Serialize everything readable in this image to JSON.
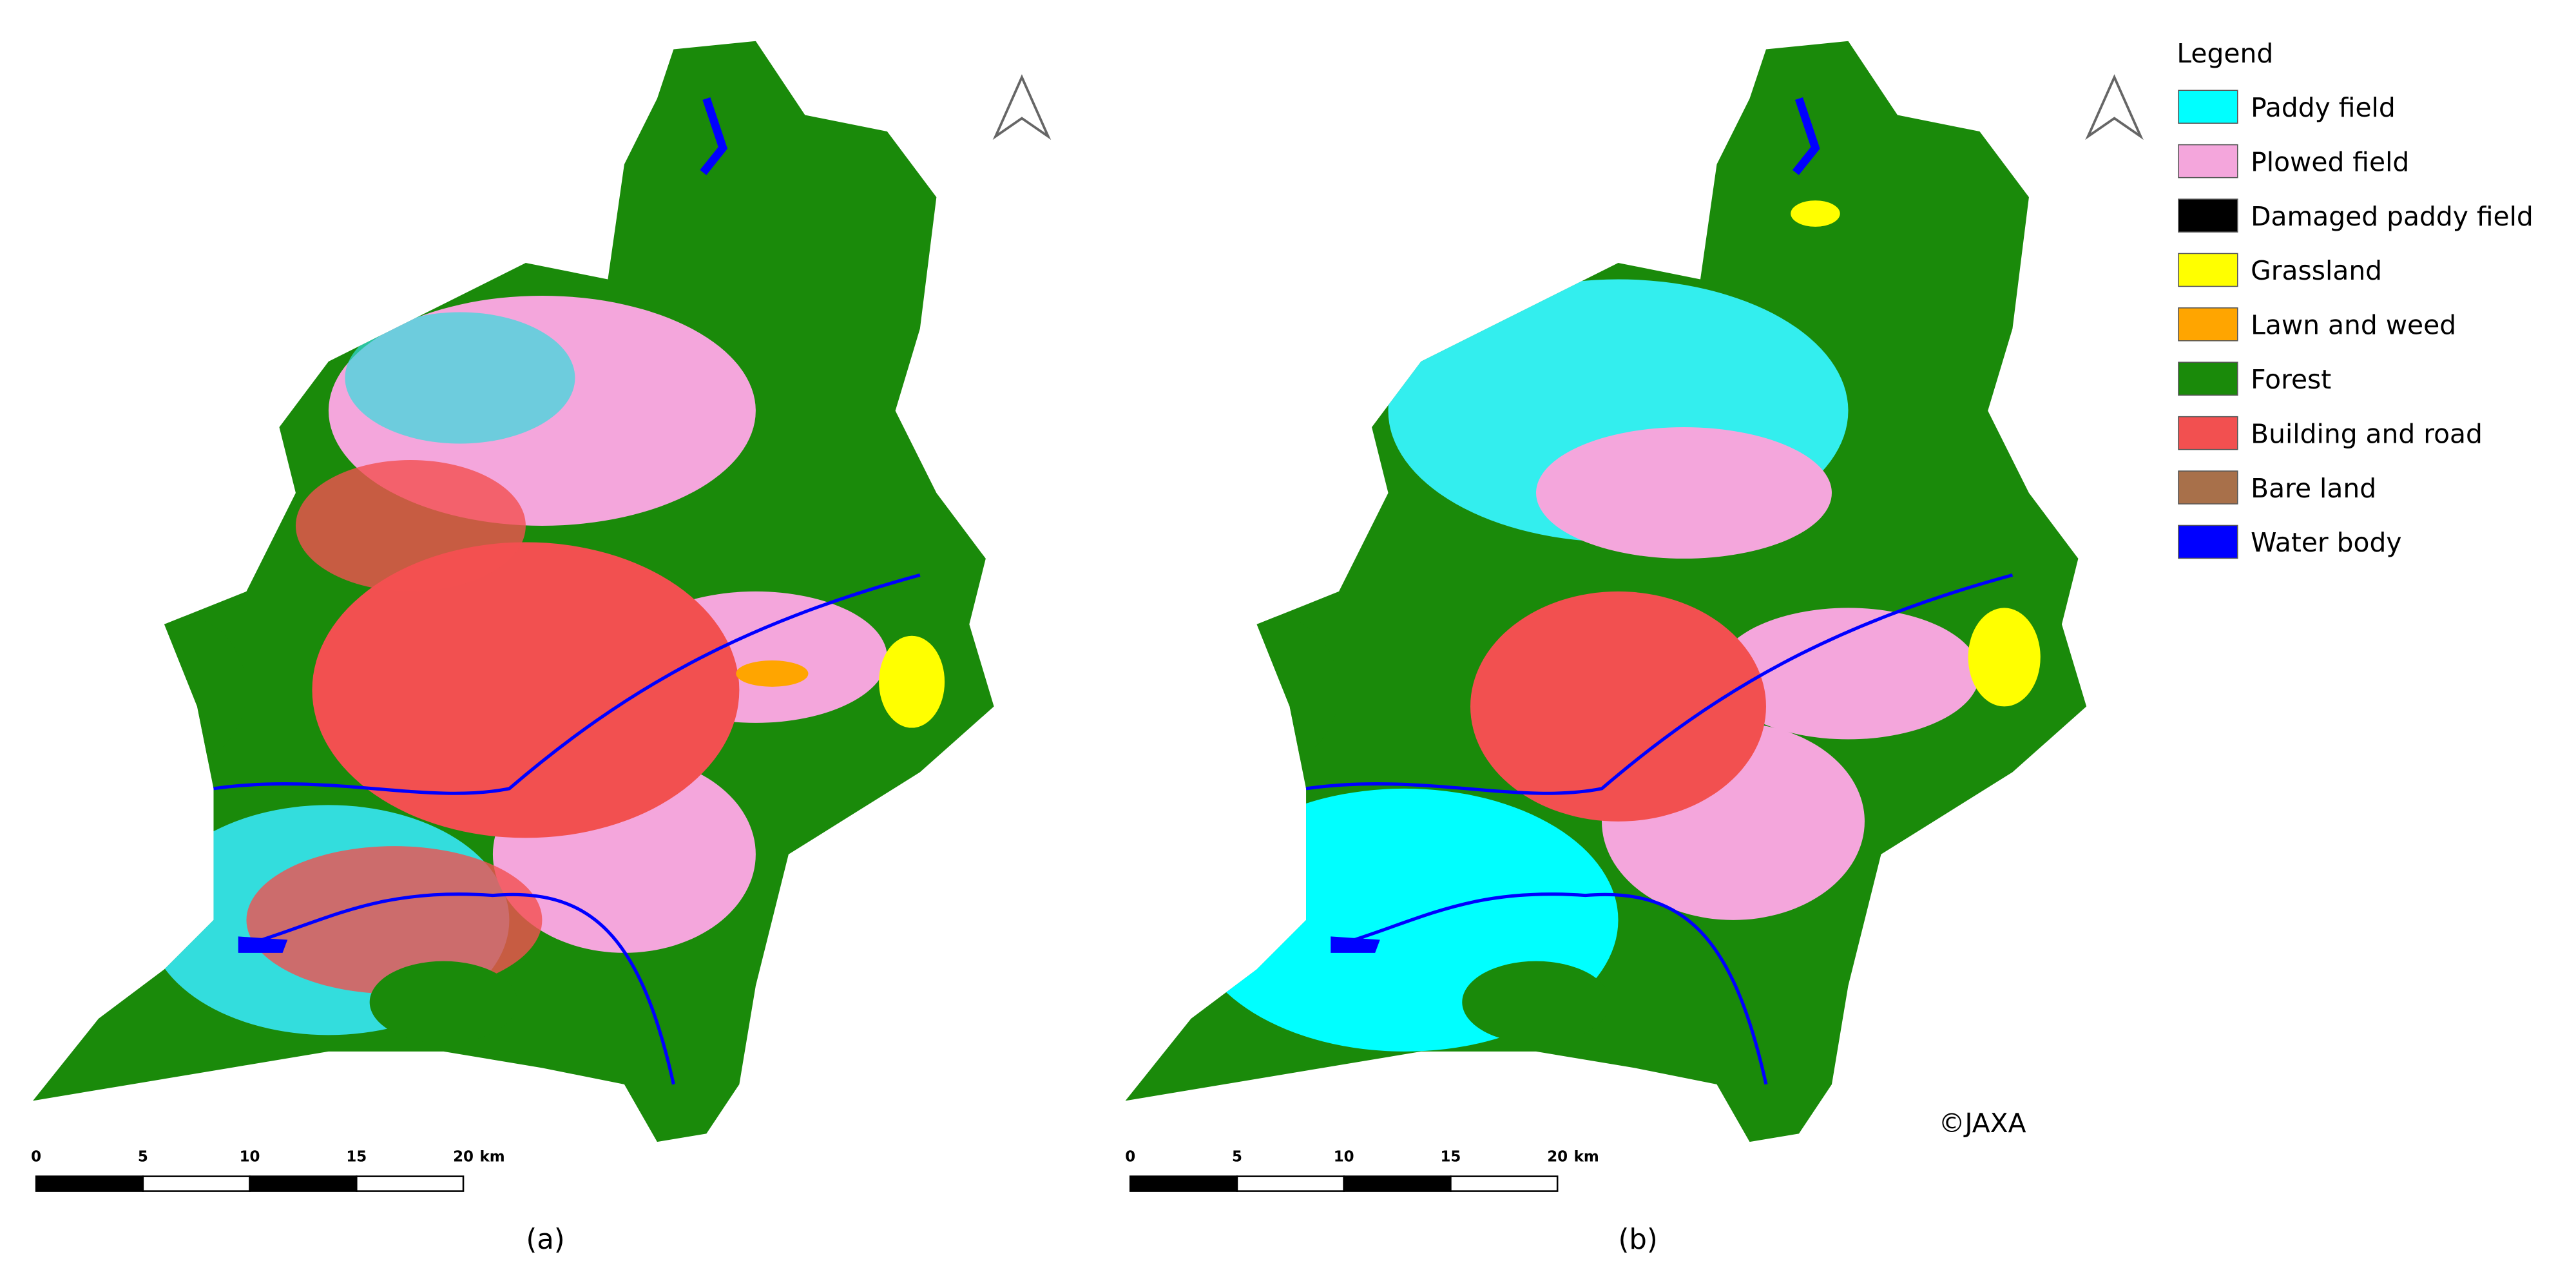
{
  "legend": {
    "title": "Legend",
    "items": [
      {
        "label": "Paddy field",
        "color": "#00ffff"
      },
      {
        "label": "Plowed field",
        "color": "#f4a6dc"
      },
      {
        "label": "Damaged paddy field",
        "color": "#000000"
      },
      {
        "label": "Grassland",
        "color": "#ffff00"
      },
      {
        "label": "Lawn and weed",
        "color": "#ffa500"
      },
      {
        "label": "Forest",
        "color": "#1a8a0a"
      },
      {
        "label": "Building and road",
        "color": "#f25050"
      },
      {
        "label": "Bare land",
        "color": "#a8704a"
      },
      {
        "label": "Water body",
        "color": "#0000ff"
      }
    ]
  },
  "panels": [
    {
      "label": "(a)",
      "scale_labels": [
        "0",
        "5",
        "10",
        "15",
        "20"
      ],
      "scale_unit": "km"
    },
    {
      "label": "(b)",
      "scale_labels": [
        "0",
        "5",
        "10",
        "15",
        "20"
      ],
      "scale_unit": "km"
    }
  ],
  "credit": "©JAXA"
}
